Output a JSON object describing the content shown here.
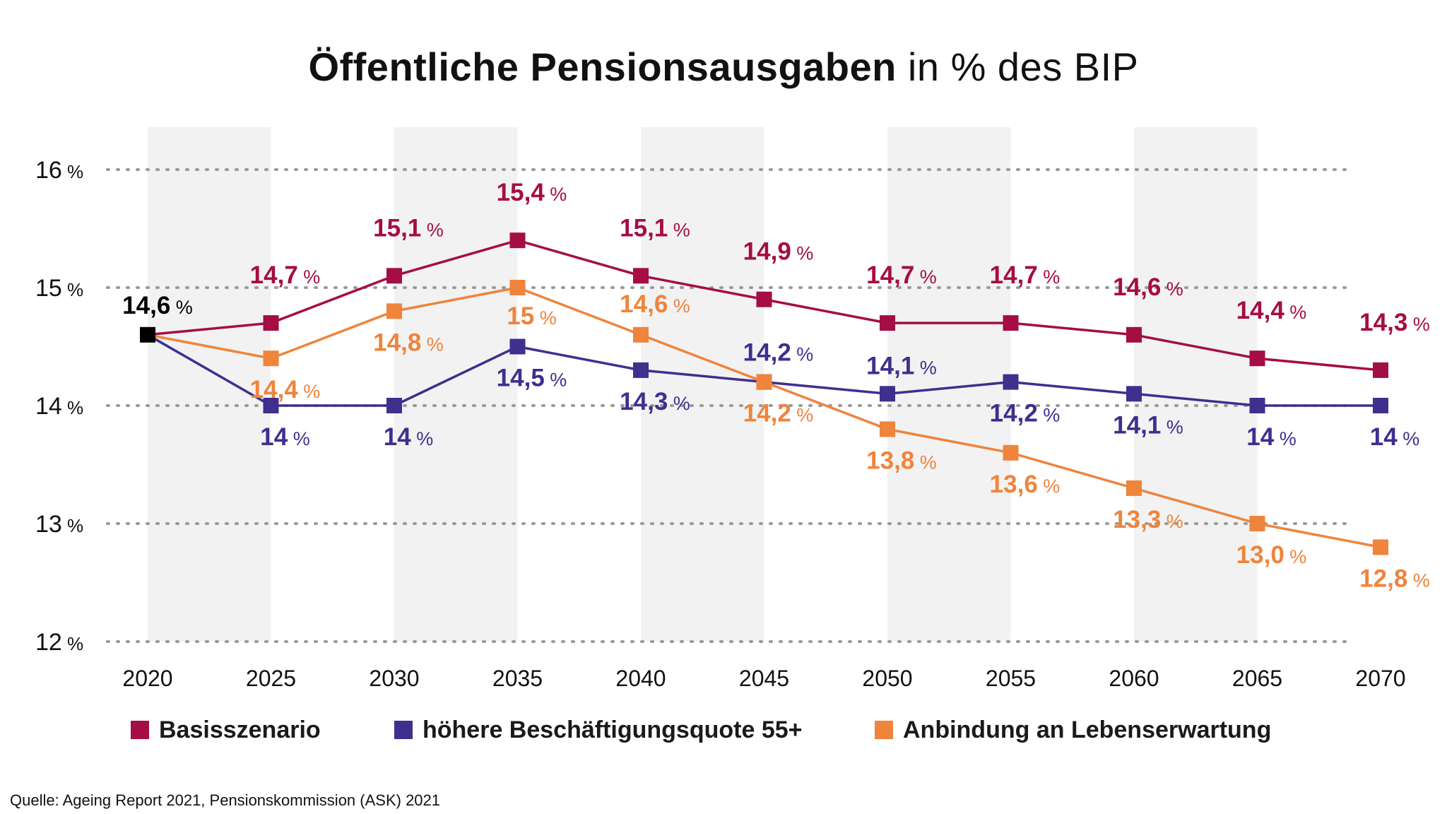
{
  "title_bold": "Öffentliche Pensionsausgaben",
  "title_rest": "in % des BIP",
  "source": "Quelle: Ageing Report 2021, Pensionskommission (ASK) 2021",
  "colors": {
    "basis": "#a50d45",
    "employment": "#3f2f8f",
    "life": "#ef843c",
    "start": "#000000",
    "band": "#f2f2f2",
    "grid": "#9a9a9a"
  },
  "chart_data": {
    "type": "line",
    "title": "Öffentliche Pensionsausgaben in % des BIP",
    "xlabel": "",
    "ylabel": "",
    "ylim": [
      12,
      16
    ],
    "yticks": [
      12,
      13,
      14,
      15,
      16
    ],
    "ytick_labels": [
      "12 %",
      "13 %",
      "14 %",
      "15 %",
      "16 %"
    ],
    "categories": [
      "2020",
      "2025",
      "2030",
      "2035",
      "2040",
      "2045",
      "2050",
      "2055",
      "2060",
      "2065",
      "2070"
    ],
    "start_label": {
      "value": "14,6",
      "unit": "%"
    },
    "series": [
      {
        "name": "Basisszenario",
        "key": "basis",
        "values": [
          14.6,
          14.7,
          15.1,
          15.4,
          15.1,
          14.9,
          14.7,
          14.7,
          14.6,
          14.4,
          14.3
        ],
        "labels": [
          "",
          "14,7",
          "15,1",
          "15,4",
          "15,1",
          "14,9",
          "14,7",
          "14,7",
          "14,6",
          "14,4",
          "14,3"
        ]
      },
      {
        "name": "höhere Beschäftigungsquote 55+",
        "key": "employment",
        "values": [
          14.6,
          14.0,
          14.0,
          14.5,
          14.3,
          14.2,
          14.1,
          14.2,
          14.1,
          14.0,
          14.0
        ],
        "labels": [
          "",
          "14",
          "14",
          "14,5",
          "14,3",
          "14,2",
          "14,1",
          "14,2",
          "14,1",
          "14",
          "14"
        ]
      },
      {
        "name": "Anbindung an Lebenserwartung",
        "key": "life",
        "values": [
          14.6,
          14.4,
          14.8,
          15.0,
          14.6,
          14.2,
          13.8,
          13.6,
          13.3,
          13.0,
          12.8
        ],
        "labels": [
          "",
          "14,4",
          "14,8",
          "15",
          "14,6",
          "14,2",
          "13,8",
          "13,6",
          "13,3",
          "13,0",
          "12,8"
        ]
      }
    ],
    "unit_suffix": "%",
    "grid": true,
    "legend": "bottom"
  }
}
